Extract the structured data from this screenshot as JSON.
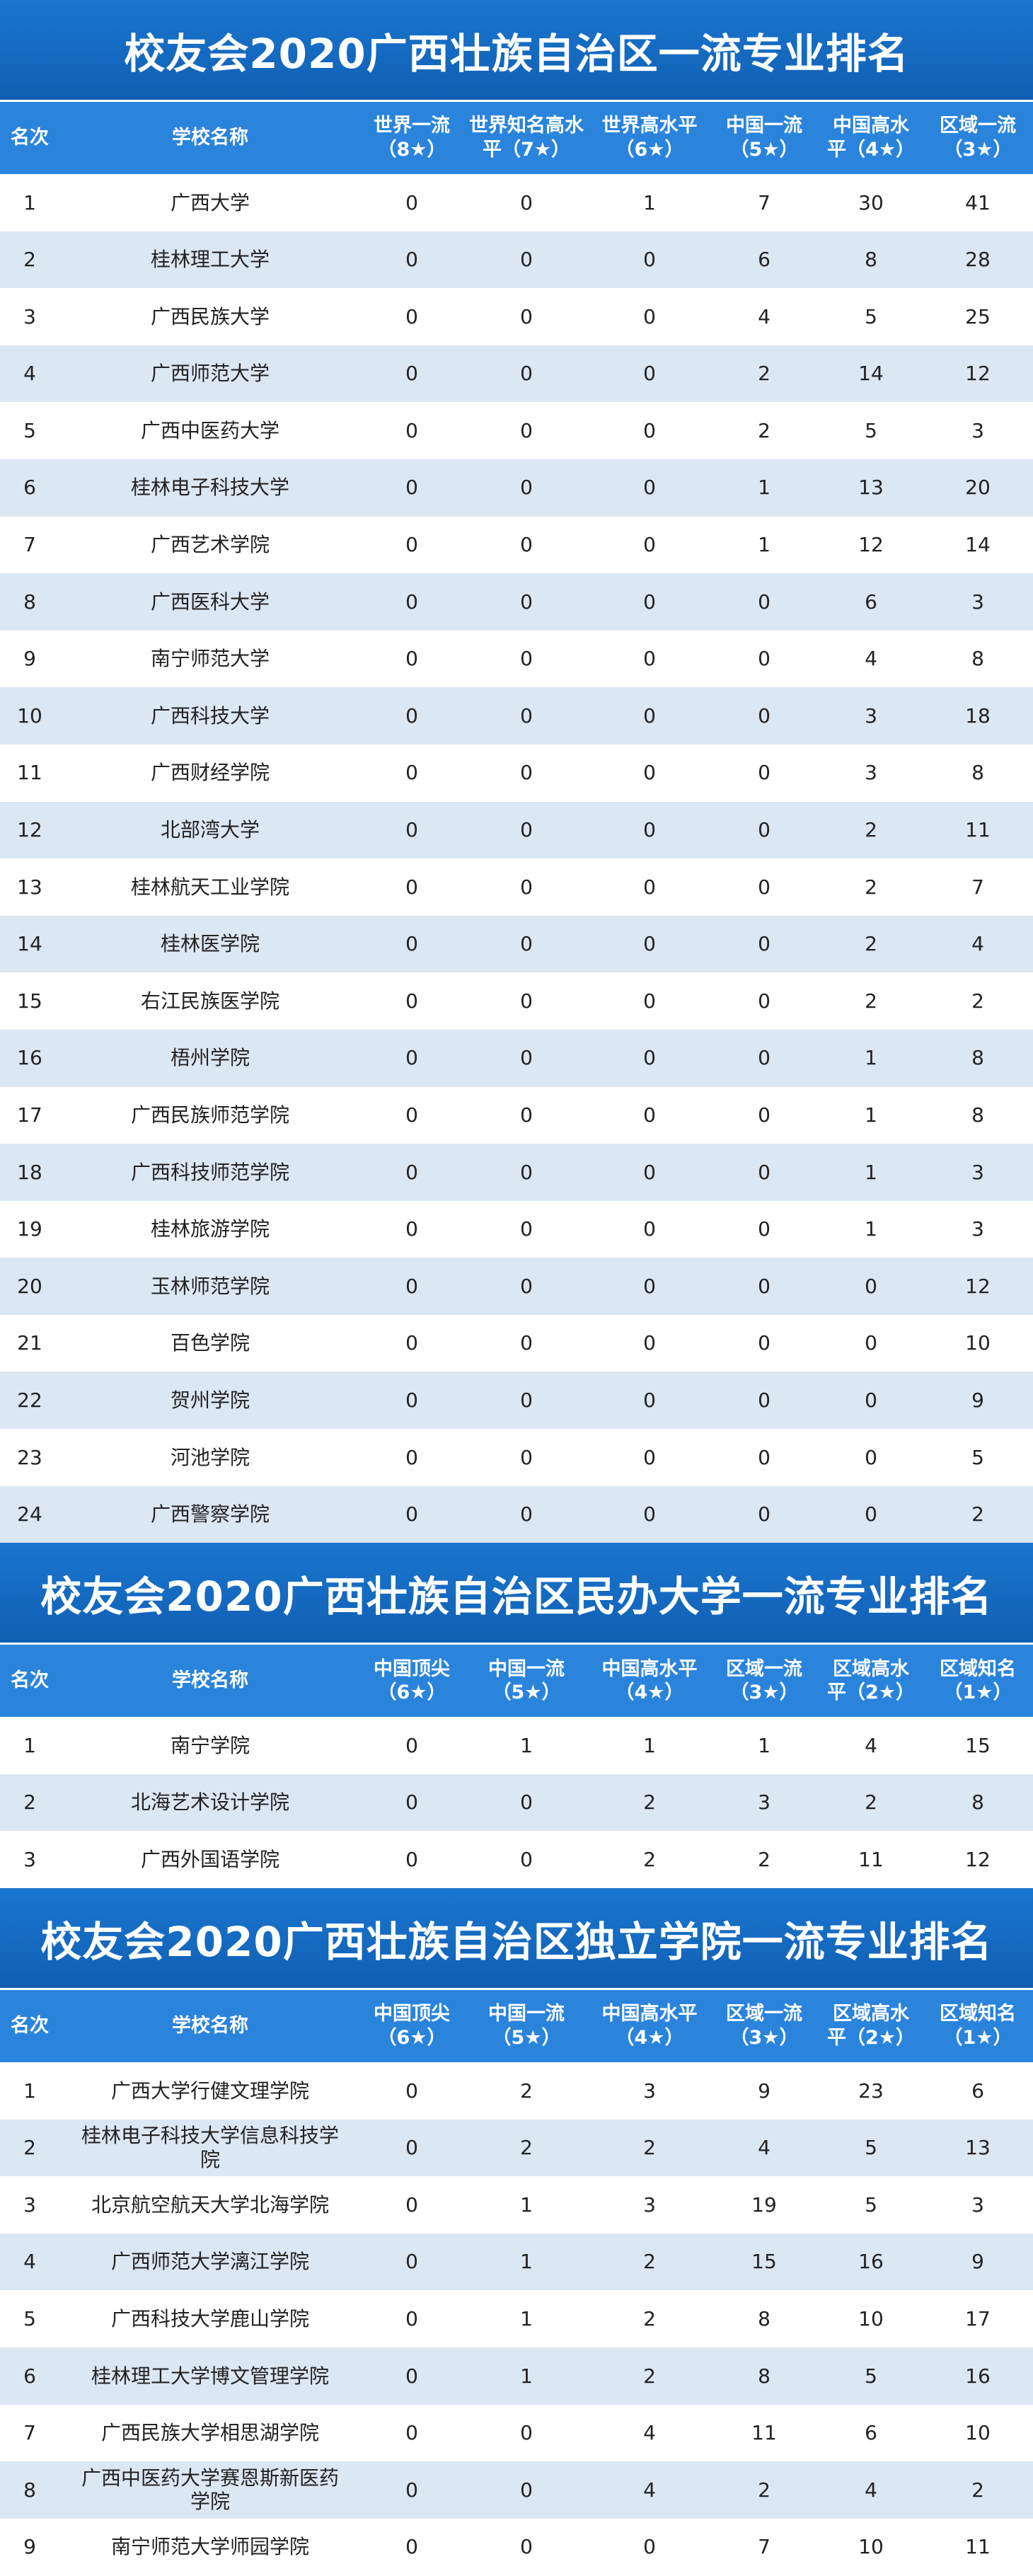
{
  "tables": [
    {
      "title": "校友会2020广西壮族自治区一流专业排名",
      "headers": [
        "名次",
        "学校名称",
        "世界一流（8★）",
        "世界知名高水平（7★）",
        "世界高水平（6★）",
        "中国一流（5★）",
        "中国高水平（4★）",
        "区域一流（3★）"
      ],
      "rows": [
        [
          1,
          "广西大学",
          0,
          0,
          1,
          7,
          30,
          41
        ],
        [
          2,
          "桂林理工大学",
          0,
          0,
          0,
          6,
          8,
          28
        ],
        [
          3,
          "广西民族大学",
          0,
          0,
          0,
          4,
          5,
          25
        ],
        [
          4,
          "广西师范大学",
          0,
          0,
          0,
          2,
          14,
          12
        ],
        [
          5,
          "广西中医药大学",
          0,
          0,
          0,
          2,
          5,
          3
        ],
        [
          6,
          "桂林电子科技大学",
          0,
          0,
          0,
          1,
          13,
          20
        ],
        [
          7,
          "广西艺术学院",
          0,
          0,
          0,
          1,
          12,
          14
        ],
        [
          8,
          "广西医科大学",
          0,
          0,
          0,
          0,
          6,
          3
        ],
        [
          9,
          "南宁师范大学",
          0,
          0,
          0,
          0,
          4,
          8
        ],
        [
          10,
          "广西科技大学",
          0,
          0,
          0,
          0,
          3,
          18
        ],
        [
          11,
          "广西财经学院",
          0,
          0,
          0,
          0,
          3,
          8
        ],
        [
          12,
          "北部湾大学",
          0,
          0,
          0,
          0,
          2,
          11
        ],
        [
          13,
          "桂林航天工业学院",
          0,
          0,
          0,
          0,
          2,
          7
        ],
        [
          14,
          "桂林医学院",
          0,
          0,
          0,
          0,
          2,
          4
        ],
        [
          15,
          "右江民族医学院",
          0,
          0,
          0,
          0,
          2,
          2
        ],
        [
          16,
          "梧州学院",
          0,
          0,
          0,
          0,
          1,
          8
        ],
        [
          17,
          "广西民族师范学院",
          0,
          0,
          0,
          0,
          1,
          8
        ],
        [
          18,
          "广西科技师范学院",
          0,
          0,
          0,
          0,
          1,
          3
        ],
        [
          19,
          "桂林旅游学院",
          0,
          0,
          0,
          0,
          1,
          3
        ],
        [
          20,
          "玉林师范学院",
          0,
          0,
          0,
          0,
          0,
          12
        ],
        [
          21,
          "百色学院",
          0,
          0,
          0,
          0,
          0,
          10
        ],
        [
          22,
          "贺州学院",
          0,
          0,
          0,
          0,
          0,
          9
        ],
        [
          23,
          "河池学院",
          0,
          0,
          0,
          0,
          0,
          5
        ],
        [
          24,
          "广西警察学院",
          0,
          0,
          0,
          0,
          0,
          2
        ]
      ]
    },
    {
      "title": "校友会2020广西壮族自治区民办大学一流专业排名",
      "headers": [
        "名次",
        "学校名称",
        "中国顶尖（6★）",
        "中国一流（5★）",
        "中国高水平（4★）",
        "区域一流（3★）",
        "区域高水平（2★）",
        "区域知名（1★）"
      ],
      "rows": [
        [
          1,
          "南宁学院",
          0,
          1,
          1,
          1,
          4,
          15
        ],
        [
          2,
          "北海艺术设计学院",
          0,
          0,
          2,
          3,
          2,
          8
        ],
        [
          3,
          "广西外国语学院",
          0,
          0,
          2,
          2,
          11,
          12
        ]
      ]
    },
    {
      "title": "校友会2020广西壮族自治区独立学院一流专业排名",
      "headers": [
        "名次",
        "学校名称",
        "中国顶尖（6★）",
        "中国一流（5★）",
        "中国高水平（4★）",
        "区域一流（3★）",
        "区域高水平（2★）",
        "区域知名（1★）"
      ],
      "rows": [
        [
          1,
          "广西大学行健文理学院",
          0,
          2,
          3,
          9,
          23,
          6
        ],
        [
          2,
          "桂林电子科技大学信息科技学院",
          0,
          2,
          2,
          4,
          5,
          13
        ],
        [
          3,
          "北京航空航天大学北海学院",
          0,
          1,
          3,
          19,
          5,
          3
        ],
        [
          4,
          "广西师范大学漓江学院",
          0,
          1,
          2,
          15,
          16,
          9
        ],
        [
          5,
          "广西科技大学鹿山学院",
          0,
          1,
          2,
          8,
          10,
          17
        ],
        [
          6,
          "桂林理工大学博文管理学院",
          0,
          1,
          2,
          8,
          5,
          16
        ],
        [
          7,
          "广西民族大学相思湖学院",
          0,
          0,
          4,
          11,
          6,
          10
        ],
        [
          8,
          "广西中医药大学赛恩斯新医药学院",
          0,
          0,
          4,
          2,
          4,
          2
        ],
        [
          9,
          "南宁师范大学师园学院",
          0,
          0,
          0,
          7,
          10,
          11
        ]
      ]
    }
  ]
}
